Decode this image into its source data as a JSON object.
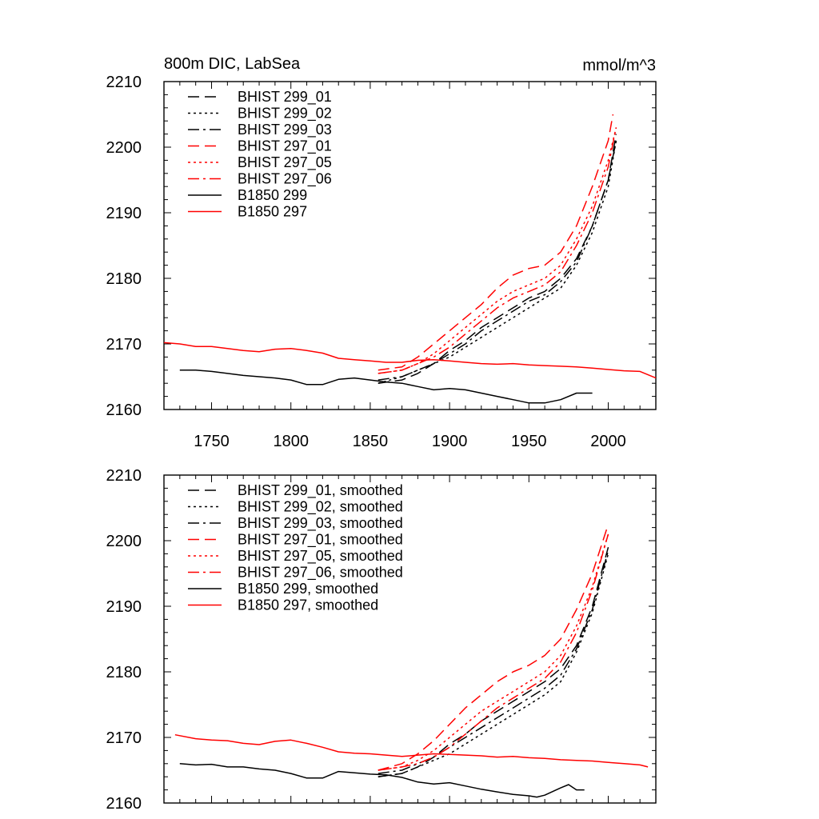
{
  "colors": {
    "black": "#000000",
    "red": "#ff0000"
  },
  "chart_data": [
    {
      "type": "line",
      "title": "800m DIC, LabSea",
      "units": "mmol/m^3",
      "xlim": [
        1720,
        2030
      ],
      "ylim": [
        2160,
        2210
      ],
      "xticks": [
        1750,
        1800,
        1850,
        1900,
        1950,
        2000
      ],
      "yticks": [
        2160,
        2170,
        2180,
        2190,
        2200,
        2210
      ],
      "show_xtick_labels": true,
      "legend_position": "top-left",
      "series": [
        {
          "name": "BHIST 299_01",
          "color": "#000000",
          "dash": "dash",
          "x": [
            1855,
            1870,
            1880,
            1890,
            1900,
            1910,
            1920,
            1930,
            1940,
            1950,
            1960,
            1970,
            1980,
            1990,
            2000,
            2005
          ],
          "y": [
            2164,
            2164.5,
            2165.5,
            2167,
            2169,
            2170.5,
            2172.5,
            2174,
            2175.5,
            2177,
            2178,
            2180,
            2183,
            2188,
            2195,
            2202
          ]
        },
        {
          "name": "BHIST 299_02",
          "color": "#000000",
          "dash": "dot",
          "x": [
            1855,
            1870,
            1880,
            1890,
            1900,
            1910,
            1920,
            1930,
            1940,
            1950,
            1960,
            1970,
            1980,
            1990,
            2000,
            2005
          ],
          "y": [
            2164,
            2165,
            2166,
            2167,
            2168,
            2169.5,
            2171,
            2172.5,
            2174,
            2175.5,
            2177,
            2178.5,
            2182,
            2187,
            2194,
            2201
          ]
        },
        {
          "name": "BHIST 299_03",
          "color": "#000000",
          "dash": "dashdot",
          "x": [
            1855,
            1870,
            1880,
            1890,
            1900,
            1910,
            1920,
            1930,
            1940,
            1950,
            1960,
            1970,
            1980,
            1990,
            2000,
            2005
          ],
          "y": [
            2164.5,
            2165,
            2166,
            2167,
            2168.5,
            2170,
            2172,
            2173.5,
            2175,
            2176.5,
            2177.5,
            2179.5,
            2182.5,
            2188,
            2195,
            2201
          ]
        },
        {
          "name": "BHIST 297_01",
          "color": "#ff0000",
          "dash": "dash",
          "x": [
            1855,
            1870,
            1880,
            1890,
            1900,
            1910,
            1920,
            1930,
            1940,
            1950,
            1960,
            1970,
            1980,
            1990,
            2000,
            2003
          ],
          "y": [
            2166,
            2166.5,
            2168,
            2170,
            2172,
            2174,
            2176,
            2178.5,
            2180.5,
            2181.5,
            2182,
            2184,
            2188,
            2194,
            2201,
            2205
          ]
        },
        {
          "name": "BHIST 297_05",
          "color": "#ff0000",
          "dash": "dot",
          "x": [
            1855,
            1870,
            1880,
            1890,
            1900,
            1910,
            1920,
            1930,
            1940,
            1950,
            1960,
            1970,
            1980,
            1990,
            2000,
            2005
          ],
          "y": [
            2165.5,
            2166,
            2167,
            2168.5,
            2170.5,
            2172.5,
            2174.5,
            2176.5,
            2178,
            2179,
            2180,
            2182,
            2186,
            2191,
            2198,
            2203
          ]
        },
        {
          "name": "BHIST 297_06",
          "color": "#ff0000",
          "dash": "dashdot",
          "x": [
            1855,
            1870,
            1880,
            1890,
            1900,
            1910,
            1920,
            1930,
            1940,
            1950,
            1960,
            1970,
            1980,
            1990,
            2000,
            2005
          ],
          "y": [
            2165.5,
            2166,
            2167,
            2168,
            2169.5,
            2171.5,
            2173.5,
            2175.5,
            2177,
            2178,
            2179,
            2181,
            2185,
            2190,
            2197,
            2203
          ]
        },
        {
          "name": "B1850 299",
          "color": "#000000",
          "dash": "solid",
          "x": [
            1730,
            1740,
            1750,
            1760,
            1770,
            1780,
            1790,
            1800,
            1810,
            1820,
            1830,
            1840,
            1850,
            1860,
            1870,
            1880,
            1890,
            1900,
            1910,
            1920,
            1930,
            1940,
            1950,
            1960,
            1970,
            1980,
            1990
          ],
          "y": [
            2166,
            2166,
            2165.8,
            2165.5,
            2165.2,
            2165,
            2164.8,
            2164.5,
            2163.8,
            2163.8,
            2164.6,
            2164.8,
            2164.5,
            2164.2,
            2164,
            2163.5,
            2163,
            2163.2,
            2163,
            2162.5,
            2162,
            2161.5,
            2161,
            2161,
            2161.5,
            2162.5,
            2162.5
          ]
        },
        {
          "name": "B1850 297",
          "color": "#ff0000",
          "dash": "solid",
          "x": [
            1720,
            1730,
            1740,
            1750,
            1760,
            1770,
            1780,
            1790,
            1800,
            1810,
            1820,
            1830,
            1840,
            1850,
            1860,
            1870,
            1880,
            1890,
            1900,
            1910,
            1920,
            1930,
            1940,
            1950,
            1960,
            1970,
            1980,
            1990,
            2000,
            2010,
            2020,
            2030
          ],
          "y": [
            2170.2,
            2170,
            2169.6,
            2169.6,
            2169.3,
            2169,
            2168.8,
            2169.2,
            2169.3,
            2169,
            2168.6,
            2167.8,
            2167.6,
            2167.4,
            2167.2,
            2167.2,
            2167.5,
            2167.6,
            2167.4,
            2167.2,
            2167,
            2166.9,
            2167,
            2166.8,
            2166.7,
            2166.6,
            2166.5,
            2166.3,
            2166.1,
            2165.9,
            2165.8,
            2164.8
          ]
        }
      ]
    },
    {
      "type": "line",
      "xlim": [
        1720,
        2030
      ],
      "ylim": [
        2160,
        2210
      ],
      "xticks": [
        1750,
        1800,
        1850,
        1900,
        1950,
        2000
      ],
      "yticks": [
        2160,
        2170,
        2180,
        2190,
        2200,
        2210
      ],
      "show_xtick_labels": false,
      "legend_position": "top-left",
      "series": [
        {
          "name": "BHIST 299_01, smoothed",
          "color": "#000000",
          "dash": "dash",
          "x": [
            1855,
            1870,
            1880,
            1890,
            1900,
            1910,
            1920,
            1930,
            1940,
            1950,
            1960,
            1970,
            1980,
            1990,
            2000
          ],
          "y": [
            2164,
            2164.5,
            2165.5,
            2167,
            2169,
            2170.5,
            2172.5,
            2174,
            2175.5,
            2177,
            2178.5,
            2180.5,
            2184,
            2190,
            2199
          ]
        },
        {
          "name": "BHIST 299_02, smoothed",
          "color": "#000000",
          "dash": "dot",
          "x": [
            1855,
            1870,
            1880,
            1890,
            1900,
            1910,
            1920,
            1930,
            1940,
            1950,
            1960,
            1970,
            1980,
            1990,
            2000
          ],
          "y": [
            2164,
            2164.5,
            2165.5,
            2166.5,
            2167.5,
            2169,
            2170.5,
            2172,
            2173.5,
            2175,
            2176.5,
            2178.5,
            2183,
            2189,
            2198
          ]
        },
        {
          "name": "BHIST 299_03, smoothed",
          "color": "#000000",
          "dash": "dashdot",
          "x": [
            1855,
            1870,
            1880,
            1890,
            1900,
            1910,
            1920,
            1930,
            1940,
            1950,
            1960,
            1970,
            1980,
            1990,
            2000
          ],
          "y": [
            2164.5,
            2165,
            2166,
            2167,
            2168.5,
            2170,
            2171.5,
            2173,
            2174.5,
            2176,
            2177.5,
            2179.5,
            2183.5,
            2189.5,
            2198.5
          ]
        },
        {
          "name": "BHIST 297_01, smoothed",
          "color": "#ff0000",
          "dash": "dash",
          "x": [
            1855,
            1870,
            1880,
            1890,
            1900,
            1910,
            1920,
            1930,
            1940,
            1950,
            1960,
            1970,
            1980,
            1990,
            2000
          ],
          "y": [
            2165,
            2166,
            2167.5,
            2169.5,
            2172,
            2174.5,
            2176.5,
            2178.5,
            2180,
            2181,
            2182.5,
            2185,
            2189.5,
            2195,
            2202.5
          ]
        },
        {
          "name": "BHIST 297_05, smoothed",
          "color": "#ff0000",
          "dash": "dot",
          "x": [
            1855,
            1870,
            1880,
            1890,
            1900,
            1910,
            1920,
            1930,
            1940,
            1950,
            1960,
            1970,
            1980,
            1990,
            2000
          ],
          "y": [
            2165,
            2165.5,
            2166.5,
            2168,
            2170,
            2172,
            2174,
            2175.5,
            2177,
            2178.5,
            2180,
            2182.5,
            2187,
            2193,
            2201
          ]
        },
        {
          "name": "BHIST 297_06, smoothed",
          "color": "#ff0000",
          "dash": "dashdot",
          "x": [
            1855,
            1870,
            1880,
            1890,
            1900,
            1910,
            1920,
            1930,
            1940,
            1950,
            1960,
            1970,
            1980,
            1990,
            2000
          ],
          "y": [
            2165,
            2165.5,
            2166,
            2167,
            2168.5,
            2170.5,
            2172.5,
            2174.5,
            2176,
            2177.5,
            2179,
            2181.5,
            2186,
            2192.5,
            2201
          ]
        },
        {
          "name": "B1850 299, smoothed",
          "color": "#000000",
          "dash": "solid",
          "x": [
            1730,
            1740,
            1750,
            1760,
            1770,
            1780,
            1790,
            1800,
            1810,
            1820,
            1830,
            1840,
            1850,
            1860,
            1870,
            1880,
            1890,
            1900,
            1910,
            1920,
            1930,
            1940,
            1950,
            1955,
            1960,
            1970,
            1975,
            1980,
            1985
          ],
          "y": [
            2166,
            2165.8,
            2165.9,
            2165.5,
            2165.5,
            2165.2,
            2165,
            2164.5,
            2163.8,
            2163.8,
            2164.8,
            2164.6,
            2164.4,
            2164.3,
            2163.9,
            2163.2,
            2162.9,
            2163.1,
            2162.6,
            2162.1,
            2161.7,
            2161.3,
            2161.1,
            2160.9,
            2161.2,
            2162.3,
            2162.8,
            2162,
            2162
          ]
        },
        {
          "name": "B1850 297, smoothed",
          "color": "#ff0000",
          "dash": "solid",
          "x": [
            1727,
            1740,
            1750,
            1760,
            1770,
            1780,
            1790,
            1800,
            1810,
            1820,
            1830,
            1840,
            1850,
            1860,
            1870,
            1880,
            1890,
            1900,
            1910,
            1920,
            1930,
            1940,
            1950,
            1960,
            1970,
            1980,
            1990,
            2000,
            2010,
            2020,
            2025
          ],
          "y": [
            2170.4,
            2169.8,
            2169.6,
            2169.5,
            2169.1,
            2168.9,
            2169.4,
            2169.6,
            2169.1,
            2168.5,
            2167.8,
            2167.6,
            2167.5,
            2167.3,
            2167.1,
            2167.3,
            2167.5,
            2167.4,
            2167.3,
            2167.2,
            2167,
            2167.1,
            2166.9,
            2166.8,
            2166.6,
            2166.5,
            2166.4,
            2166.2,
            2166,
            2165.8,
            2165.5
          ]
        }
      ]
    }
  ]
}
